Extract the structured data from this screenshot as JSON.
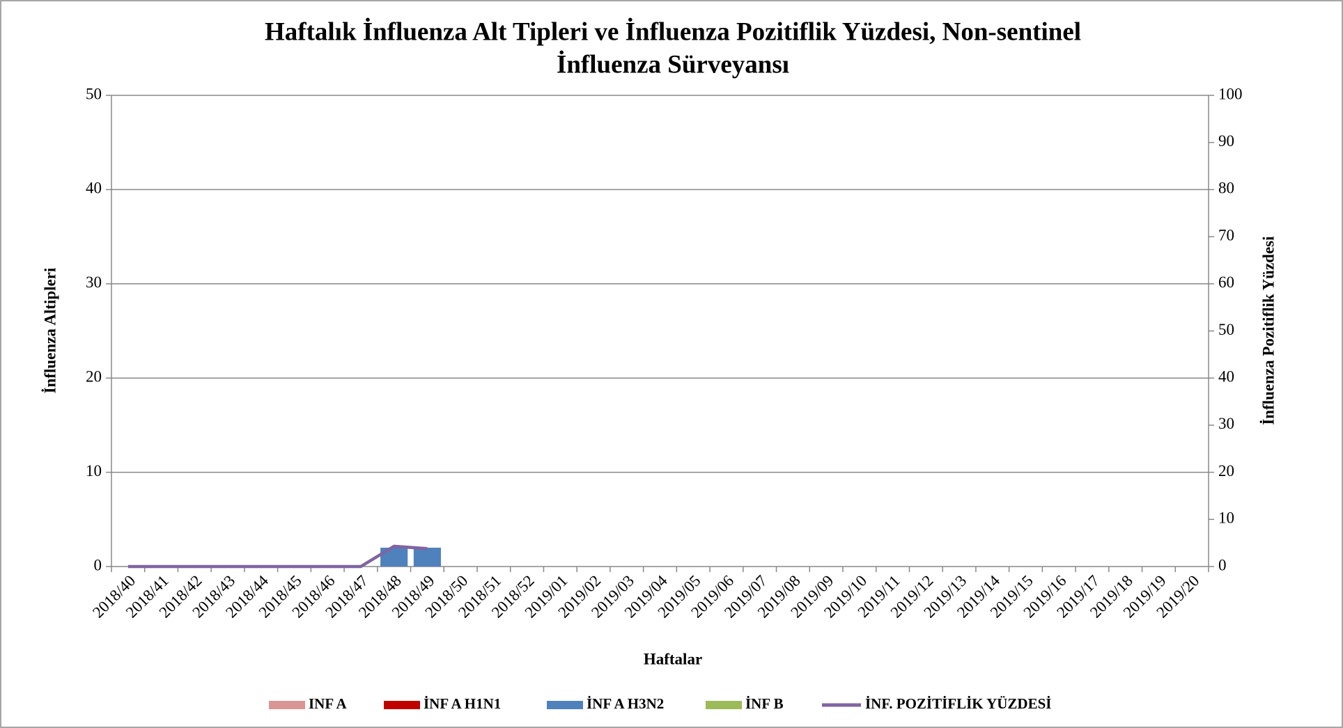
{
  "chart_data": {
    "type": "bar",
    "title": [
      "Haftalık İnfluenza Alt Tipleri ve İnfluenza Pozitiflik Yüzdesi, Non-sentinel",
      "İnfluenza Sürveyansı"
    ],
    "x_label": "Haftalar",
    "y_label": "İnfluenza Altipleri",
    "y2_label": "İnfluenza Pozitiflik Yüzdesi",
    "categories": [
      "2018/40",
      "2018/41",
      "2018/42",
      "2018/43",
      "2018/44",
      "2018/45",
      "2018/46",
      "2018/47",
      "2018/48",
      "2018/49",
      "2018/50",
      "2018/51",
      "2018/52",
      "2019/01",
      "2019/02",
      "2019/03",
      "2019/04",
      "2019/05",
      "2019/06",
      "2019/07",
      "2019/08",
      "2019/09",
      "2019/10",
      "2019/11",
      "2019/12",
      "2019/13",
      "2019/14",
      "2019/15",
      "2019/16",
      "2019/17",
      "2019/18",
      "2019/19",
      "2019/20"
    ],
    "series": [
      {
        "name": "INF A",
        "type": "bar",
        "color": "#d99694",
        "values": [
          0,
          0,
          0,
          0,
          0,
          0,
          0,
          0,
          0,
          0,
          null,
          null,
          null,
          null,
          null,
          null,
          null,
          null,
          null,
          null,
          null,
          null,
          null,
          null,
          null,
          null,
          null,
          null,
          null,
          null,
          null,
          null,
          null
        ]
      },
      {
        "name": "İNF A H1N1",
        "type": "bar",
        "color": "#c00000",
        "values": [
          0,
          0,
          0,
          0,
          0,
          0,
          0,
          0,
          0,
          0,
          null,
          null,
          null,
          null,
          null,
          null,
          null,
          null,
          null,
          null,
          null,
          null,
          null,
          null,
          null,
          null,
          null,
          null,
          null,
          null,
          null,
          null,
          null
        ]
      },
      {
        "name": "İNF A H3N2",
        "type": "bar",
        "color": "#4f81bd",
        "values": [
          0,
          0,
          0,
          0,
          0,
          0,
          0,
          0,
          2,
          2,
          null,
          null,
          null,
          null,
          null,
          null,
          null,
          null,
          null,
          null,
          null,
          null,
          null,
          null,
          null,
          null,
          null,
          null,
          null,
          null,
          null,
          null,
          null
        ]
      },
      {
        "name": "İNF B",
        "type": "bar",
        "color": "#9bbb59",
        "values": [
          0,
          0,
          0,
          0,
          0,
          0,
          0,
          0,
          0,
          0,
          null,
          null,
          null,
          null,
          null,
          null,
          null,
          null,
          null,
          null,
          null,
          null,
          null,
          null,
          null,
          null,
          null,
          null,
          null,
          null,
          null,
          null,
          null
        ]
      },
      {
        "name": "İNF. POZİTİFLİK YÜZDESİ",
        "type": "line",
        "axis": "y2",
        "color": "#8064a2",
        "values": [
          0,
          0,
          0,
          0,
          0,
          0,
          0,
          0,
          4.3,
          3.8,
          null,
          null,
          null,
          null,
          null,
          null,
          null,
          null,
          null,
          null,
          null,
          null,
          null,
          null,
          null,
          null,
          null,
          null,
          null,
          null,
          null,
          null,
          null
        ]
      }
    ],
    "ylim": [
      0,
      50
    ],
    "yticks": [
      0,
      10,
      20,
      30,
      40,
      50
    ],
    "y2lim": [
      0,
      100
    ],
    "y2ticks": [
      0,
      10,
      20,
      30,
      40,
      50,
      60,
      70,
      80,
      90,
      100
    ],
    "grid": true,
    "stacked": true,
    "legend": "bottom"
  }
}
